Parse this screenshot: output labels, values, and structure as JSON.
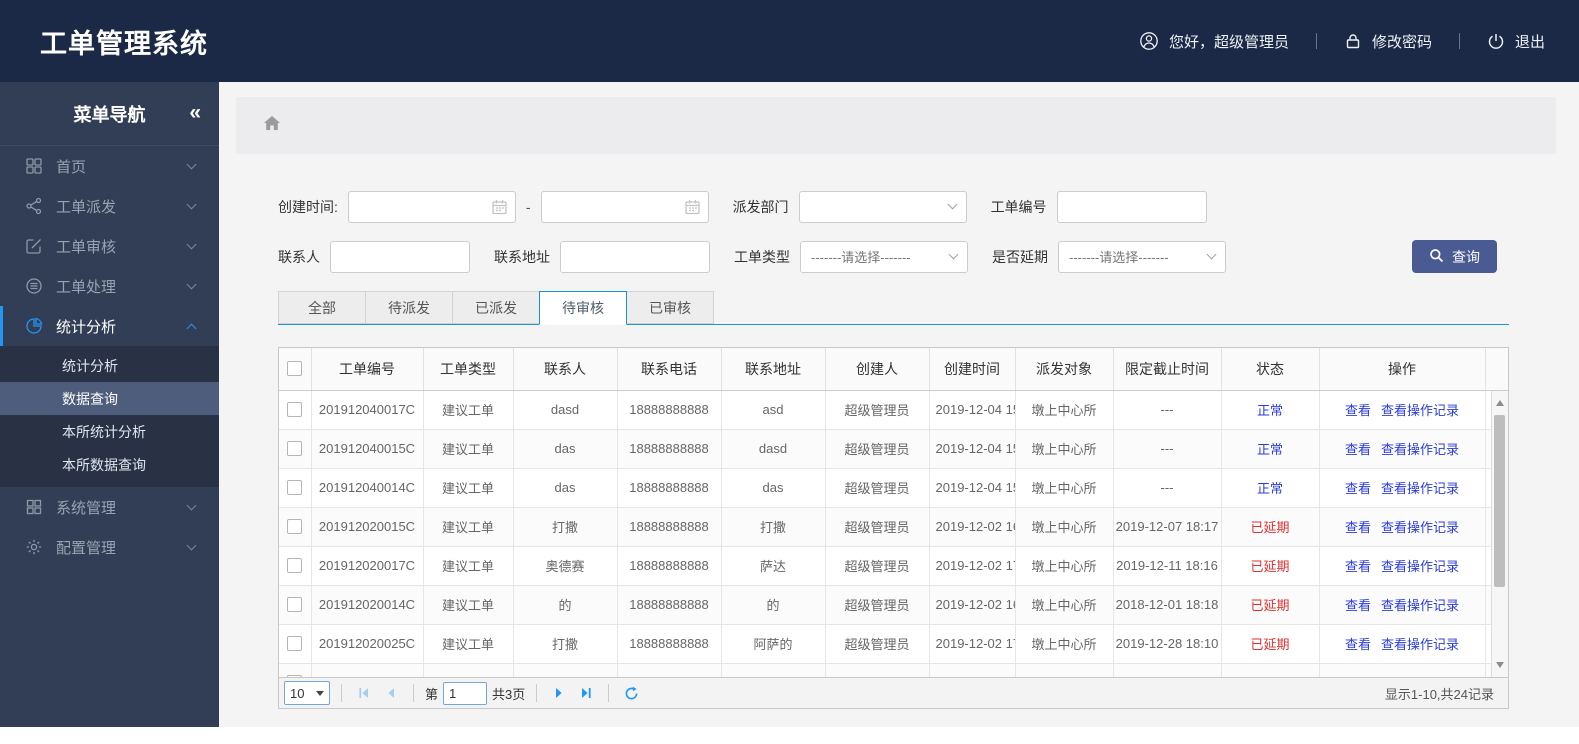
{
  "colors": {
    "topbar_bg": "#1b2947",
    "sidebar_bg": "#323e55",
    "accent": "#2196f3",
    "submenu_selected_bg": "#4e5d7c",
    "tab_border": "#1b92d4",
    "link": "#2b3cd4",
    "status_normal": "#2b3cd4",
    "status_delayed": "#e13030",
    "button": "#4a5a92",
    "pager_arrow": "#2196f3",
    "pager_arrow_disabled": "#a9cdee"
  },
  "header": {
    "title": "工单管理系统",
    "user_icon": "user-circle-icon",
    "greeting": "您好，超级管理员",
    "password_icon": "lock-icon",
    "change_password": "修改密码",
    "logout_icon": "power-icon",
    "logout": "退出"
  },
  "sidebar": {
    "title": "菜单导航",
    "collapse_glyph": "«",
    "items": [
      {
        "id": "home",
        "label": "首页",
        "icon": "grid-icon",
        "expanded": false
      },
      {
        "id": "dispatch",
        "label": "工单派发",
        "icon": "share-icon",
        "expanded": false
      },
      {
        "id": "review",
        "label": "工单审核",
        "icon": "edit-icon",
        "expanded": false
      },
      {
        "id": "process",
        "label": "工单处理",
        "icon": "db-icon",
        "expanded": false
      },
      {
        "id": "stats",
        "label": "统计分析",
        "icon": "pie-icon",
        "active": true,
        "expanded": true,
        "children": [
          {
            "label": "统计分析"
          },
          {
            "label": "数据查询",
            "selected": true
          },
          {
            "label": "本所统计分析"
          },
          {
            "label": "本所数据查询"
          }
        ]
      },
      {
        "id": "system",
        "label": "系统管理",
        "icon": "th-icon",
        "expanded": false
      },
      {
        "id": "config",
        "label": "配置管理",
        "icon": "gear-icon",
        "expanded": false
      }
    ]
  },
  "breadcrumb": {
    "home_icon": "home-icon"
  },
  "filters": {
    "create_time_label": "创建时间:",
    "date_from_value": "",
    "date_separator": "-",
    "date_to_value": "",
    "dispatch_dept_label": "派发部门",
    "dispatch_dept_value": "",
    "order_no_label": "工单编号",
    "order_no_value": "",
    "contact_label": "联系人",
    "contact_value": "",
    "address_label": "联系地址",
    "address_value": "",
    "order_type_label": "工单类型",
    "order_type_value": "-------请选择-------",
    "delay_label": "是否延期",
    "delay_value": "-------请选择-------",
    "search_button": "查询"
  },
  "tabs": {
    "items": [
      "全部",
      "待派发",
      "已派发",
      "待审核",
      "已审核"
    ],
    "active_index": 3
  },
  "table": {
    "columns": [
      "工单编号",
      "工单类型",
      "联系人",
      "联系电话",
      "联系地址",
      "创建人",
      "创建时间",
      "派发对象",
      "限定截止时间",
      "状态",
      "操作"
    ],
    "action_labels": [
      "查看",
      "查看操作记录"
    ],
    "rows": [
      {
        "order_no": "201912040017C",
        "type": "建议工单",
        "contact": "dasd",
        "phone": "18888888888",
        "address": "asd",
        "creator": "超级管理员",
        "created": "2019-12-04 15",
        "target": "墩上中心所",
        "deadline": "---",
        "status": "正常",
        "delayed": false
      },
      {
        "order_no": "201912040015C",
        "type": "建议工单",
        "contact": "das",
        "phone": "18888888888",
        "address": "dasd",
        "creator": "超级管理员",
        "created": "2019-12-04 15",
        "target": "墩上中心所",
        "deadline": "---",
        "status": "正常",
        "delayed": false
      },
      {
        "order_no": "201912040014C",
        "type": "建议工单",
        "contact": "das",
        "phone": "18888888888",
        "address": "das",
        "creator": "超级管理员",
        "created": "2019-12-04 15",
        "target": "墩上中心所",
        "deadline": "---",
        "status": "正常",
        "delayed": false
      },
      {
        "order_no": "201912020015C",
        "type": "建议工单",
        "contact": "打撒",
        "phone": "18888888888",
        "address": "打撒",
        "creator": "超级管理员",
        "created": "2019-12-02 16",
        "target": "墩上中心所",
        "deadline": "2019-12-07 18:17",
        "status": "已延期",
        "delayed": true
      },
      {
        "order_no": "201912020017C",
        "type": "建议工单",
        "contact": "奥德赛",
        "phone": "18888888888",
        "address": "萨达",
        "creator": "超级管理员",
        "created": "2019-12-02 17",
        "target": "墩上中心所",
        "deadline": "2019-12-11 18:16",
        "status": "已延期",
        "delayed": true
      },
      {
        "order_no": "201912020014C",
        "type": "建议工单",
        "contact": "的",
        "phone": "18888888888",
        "address": "的",
        "creator": "超级管理员",
        "created": "2019-12-02 16",
        "target": "墩上中心所",
        "deadline": "2018-12-01 18:18",
        "status": "已延期",
        "delayed": true
      },
      {
        "order_no": "201912020025C",
        "type": "建议工单",
        "contact": "打撒",
        "phone": "18888888888",
        "address": "阿萨的",
        "creator": "超级管理员",
        "created": "2019-12-02 17",
        "target": "墩上中心所",
        "deadline": "2019-12-28 18:10",
        "status": "已延期",
        "delayed": true
      }
    ],
    "partial_row": true
  },
  "pager": {
    "page_size": "10",
    "page_label_prefix": "第",
    "page_value": "1",
    "total_pages": "共3页",
    "summary": "显示1-10,共24记录"
  }
}
